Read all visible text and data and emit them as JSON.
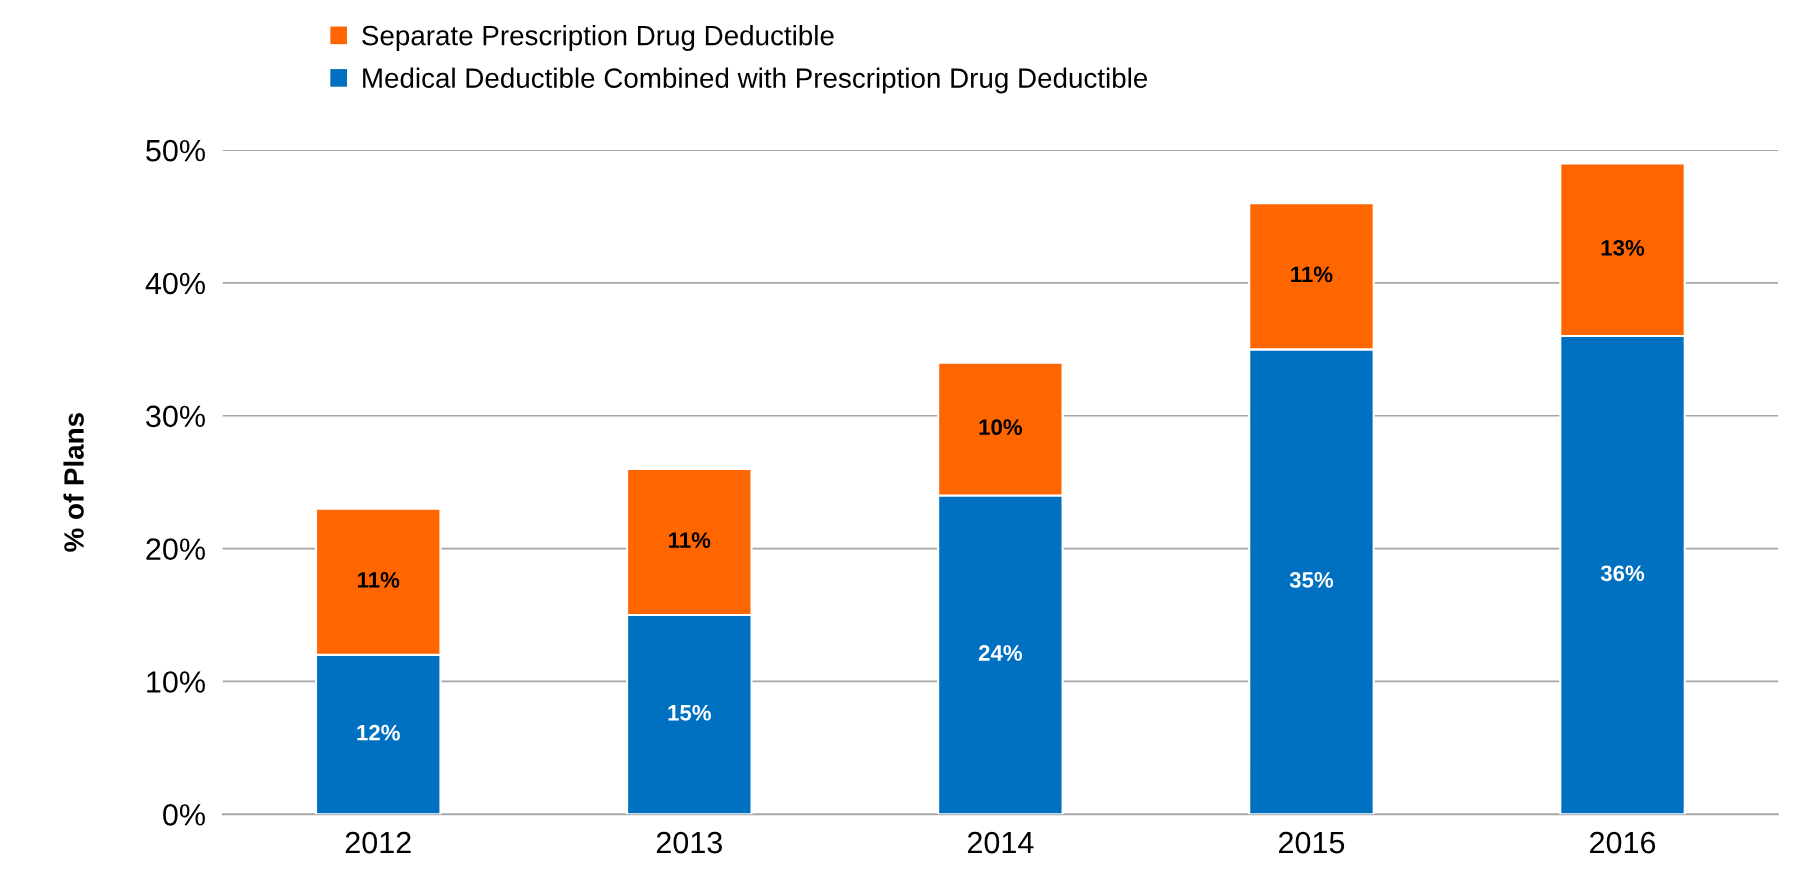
{
  "chart_data": {
    "type": "bar",
    "stacked": true,
    "ylabel": "% of Plans",
    "categories": [
      "2012",
      "2013",
      "2014",
      "2015",
      "2016"
    ],
    "series": [
      {
        "name": "Medical Deductible Combined with Prescription Drug Deductible",
        "color": "#0070c0",
        "values": [
          12,
          15,
          24,
          35,
          36
        ],
        "value_labels": [
          "12%",
          "15%",
          "24%",
          "35%",
          "36%"
        ]
      },
      {
        "name": "Separate Prescription Drug Deductible",
        "color": "#ff6600",
        "values": [
          11,
          11,
          10,
          11,
          13
        ],
        "value_labels": [
          "11%",
          "11%",
          "10%",
          "11%",
          "13%"
        ]
      }
    ],
    "ylim": [
      0,
      50
    ],
    "yticks": [
      {
        "value": 0,
        "label": "0%"
      },
      {
        "value": 10,
        "label": "10%"
      },
      {
        "value": 20,
        "label": "20%"
      },
      {
        "value": 30,
        "label": "30%"
      },
      {
        "value": 40,
        "label": "40%"
      },
      {
        "value": 50,
        "label": "50%"
      }
    ],
    "grid": "y",
    "legend": "top"
  }
}
